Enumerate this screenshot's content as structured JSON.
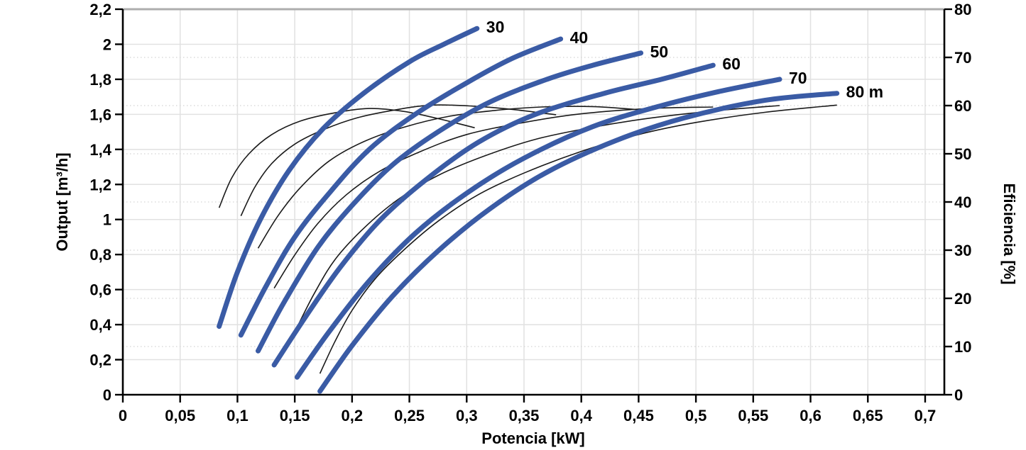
{
  "chart_data": {
    "type": "line",
    "title": "",
    "x_axis": {
      "label": "Potencia [kW]",
      "range": [
        0,
        0.7
      ],
      "tick_values": [
        0,
        0.05,
        0.1,
        0.15,
        0.2,
        0.25,
        0.3,
        0.35,
        0.4,
        0.45,
        0.5,
        0.55,
        0.6,
        0.65,
        0.7
      ],
      "tick_labels": [
        "0",
        "0,05",
        "0,1",
        "0,15",
        "0,2",
        "0,25",
        "0,3",
        "0,35",
        "0,4",
        "0,45",
        "0,5",
        "0,55",
        "0,6",
        "0,65",
        "0,7"
      ]
    },
    "y_left": {
      "label": "Output [m³/h]",
      "range": [
        0,
        2.2
      ],
      "tick_values": [
        0,
        0.2,
        0.4,
        0.6,
        0.8,
        1,
        1.2,
        1.4,
        1.6,
        1.8,
        2,
        2.2
      ],
      "tick_labels": [
        "0",
        "0,2",
        "0,4",
        "0,6",
        "0,8",
        "1",
        "1,2",
        "1,4",
        "1,6",
        "1,8",
        "2",
        "2,2"
      ]
    },
    "y_right": {
      "label": "Eficiencia [%]",
      "range": [
        0,
        80
      ],
      "tick_values": [
        0,
        10,
        20,
        30,
        40,
        50,
        60,
        70,
        80
      ],
      "tick_labels": [
        "0",
        "10",
        "20",
        "30",
        "40",
        "50",
        "60",
        "70",
        "80"
      ]
    },
    "grid": {
      "solid_color": "#E1E1E1",
      "dotted_color": "#D4D4D4",
      "dotted_at_efficiency": [
        10,
        20,
        30,
        40,
        50,
        60,
        70
      ],
      "top_border_color": "#ADADAD"
    },
    "styles": {
      "pump_color": "#3A5BA5",
      "efficiency_color": "#1A1A1A",
      "axis_color": "#000000"
    },
    "series": [
      {
        "id": "pump-30",
        "kind": "pump",
        "axis": "left",
        "label": "30",
        "points": [
          [
            0.084,
            0.39
          ],
          [
            0.1,
            0.7
          ],
          [
            0.12,
            1.0
          ],
          [
            0.145,
            1.28
          ],
          [
            0.175,
            1.52
          ],
          [
            0.21,
            1.72
          ],
          [
            0.25,
            1.9
          ],
          [
            0.28,
            2.0
          ],
          [
            0.309,
            2.09
          ]
        ]
      },
      {
        "id": "pump-40",
        "kind": "pump",
        "axis": "left",
        "label": "40",
        "points": [
          [
            0.103,
            0.34
          ],
          [
            0.125,
            0.62
          ],
          [
            0.15,
            0.9
          ],
          [
            0.18,
            1.15
          ],
          [
            0.215,
            1.4
          ],
          [
            0.255,
            1.6
          ],
          [
            0.3,
            1.78
          ],
          [
            0.34,
            1.92
          ],
          [
            0.382,
            2.03
          ]
        ]
      },
      {
        "id": "pump-50",
        "kind": "pump",
        "axis": "left",
        "label": "50",
        "points": [
          [
            0.118,
            0.25
          ],
          [
            0.14,
            0.52
          ],
          [
            0.17,
            0.84
          ],
          [
            0.2,
            1.08
          ],
          [
            0.235,
            1.31
          ],
          [
            0.275,
            1.5
          ],
          [
            0.32,
            1.67
          ],
          [
            0.37,
            1.8
          ],
          [
            0.41,
            1.88
          ],
          [
            0.452,
            1.95
          ]
        ]
      },
      {
        "id": "pump-60",
        "kind": "pump",
        "axis": "left",
        "label": "60",
        "points": [
          [
            0.132,
            0.17
          ],
          [
            0.16,
            0.45
          ],
          [
            0.19,
            0.73
          ],
          [
            0.225,
            1.0
          ],
          [
            0.265,
            1.23
          ],
          [
            0.31,
            1.44
          ],
          [
            0.36,
            1.6
          ],
          [
            0.42,
            1.72
          ],
          [
            0.47,
            1.8
          ],
          [
            0.515,
            1.88
          ]
        ]
      },
      {
        "id": "pump-70",
        "kind": "pump",
        "axis": "left",
        "label": "70",
        "points": [
          [
            0.152,
            0.1
          ],
          [
            0.18,
            0.36
          ],
          [
            0.215,
            0.65
          ],
          [
            0.255,
            0.92
          ],
          [
            0.3,
            1.15
          ],
          [
            0.35,
            1.35
          ],
          [
            0.41,
            1.53
          ],
          [
            0.47,
            1.65
          ],
          [
            0.52,
            1.73
          ],
          [
            0.573,
            1.8
          ]
        ]
      },
      {
        "id": "pump-80",
        "kind": "pump",
        "axis": "left",
        "label": "80 m",
        "points": [
          [
            0.172,
            0.02
          ],
          [
            0.2,
            0.28
          ],
          [
            0.235,
            0.56
          ],
          [
            0.275,
            0.82
          ],
          [
            0.32,
            1.06
          ],
          [
            0.37,
            1.27
          ],
          [
            0.43,
            1.45
          ],
          [
            0.49,
            1.58
          ],
          [
            0.56,
            1.68
          ],
          [
            0.623,
            1.72
          ]
        ]
      },
      {
        "id": "eff-30",
        "kind": "efficiency",
        "axis": "right",
        "label": "",
        "points": [
          [
            0.084,
            38.8
          ],
          [
            0.095,
            45.0
          ],
          [
            0.11,
            50.0
          ],
          [
            0.13,
            54.0
          ],
          [
            0.155,
            56.8
          ],
          [
            0.185,
            58.5
          ],
          [
            0.215,
            59.4
          ],
          [
            0.245,
            58.8
          ],
          [
            0.275,
            57.3
          ],
          [
            0.307,
            55.4
          ]
        ]
      },
      {
        "id": "eff-40",
        "kind": "efficiency",
        "axis": "right",
        "label": "",
        "points": [
          [
            0.103,
            37.1
          ],
          [
            0.115,
            43.0
          ],
          [
            0.13,
            48.0
          ],
          [
            0.15,
            52.0
          ],
          [
            0.175,
            55.0
          ],
          [
            0.205,
            57.5
          ],
          [
            0.24,
            59.2
          ],
          [
            0.27,
            60.1
          ],
          [
            0.305,
            59.9
          ],
          [
            0.34,
            59.2
          ],
          [
            0.378,
            58.1
          ]
        ]
      },
      {
        "id": "eff-50",
        "kind": "efficiency",
        "axis": "right",
        "label": "",
        "points": [
          [
            0.118,
            30.4
          ],
          [
            0.135,
            37.0
          ],
          [
            0.155,
            43.0
          ],
          [
            0.18,
            48.5
          ],
          [
            0.21,
            52.5
          ],
          [
            0.245,
            55.5
          ],
          [
            0.285,
            57.8
          ],
          [
            0.325,
            59.0
          ],
          [
            0.365,
            59.7
          ],
          [
            0.41,
            59.8
          ],
          [
            0.452,
            59.1
          ]
        ]
      },
      {
        "id": "eff-60",
        "kind": "efficiency",
        "axis": "right",
        "label": "",
        "points": [
          [
            0.132,
            22.1
          ],
          [
            0.15,
            29.0
          ],
          [
            0.17,
            35.5
          ],
          [
            0.195,
            41.5
          ],
          [
            0.225,
            46.5
          ],
          [
            0.26,
            50.5
          ],
          [
            0.3,
            54.0
          ],
          [
            0.35,
            56.5
          ],
          [
            0.4,
            58.3
          ],
          [
            0.46,
            59.4
          ],
          [
            0.515,
            59.7
          ]
        ]
      },
      {
        "id": "eff-70",
        "kind": "efficiency",
        "axis": "right",
        "label": "",
        "points": [
          [
            0.152,
            14.0
          ],
          [
            0.167,
            21.0
          ],
          [
            0.185,
            28.0
          ],
          [
            0.21,
            34.5
          ],
          [
            0.24,
            40.5
          ],
          [
            0.275,
            45.5
          ],
          [
            0.315,
            49.5
          ],
          [
            0.36,
            53.0
          ],
          [
            0.41,
            55.5
          ],
          [
            0.46,
            57.4
          ],
          [
            0.52,
            59.0
          ],
          [
            0.573,
            60.0
          ]
        ]
      },
      {
        "id": "eff-80",
        "kind": "efficiency",
        "axis": "right",
        "label": "",
        "points": [
          [
            0.172,
            4.4
          ],
          [
            0.185,
            11.0
          ],
          [
            0.2,
            17.5
          ],
          [
            0.22,
            24.0
          ],
          [
            0.245,
            30.0
          ],
          [
            0.275,
            36.0
          ],
          [
            0.31,
            41.5
          ],
          [
            0.35,
            46.0
          ],
          [
            0.4,
            50.5
          ],
          [
            0.45,
            54.0
          ],
          [
            0.5,
            56.5
          ],
          [
            0.56,
            58.6
          ],
          [
            0.623,
            60.1
          ]
        ]
      }
    ]
  }
}
